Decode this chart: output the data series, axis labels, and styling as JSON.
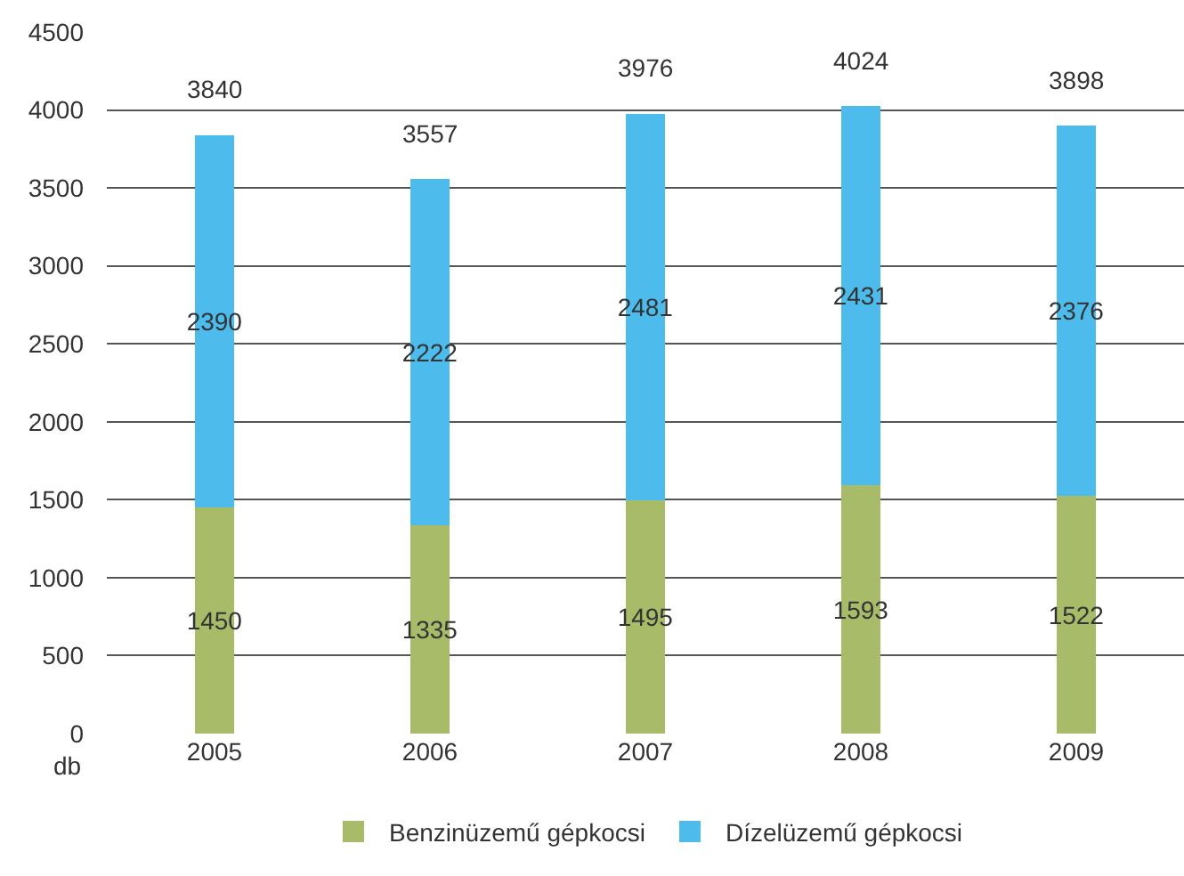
{
  "chart_data": {
    "type": "bar",
    "stacked": true,
    "ylabel": "db",
    "categories": [
      "2005",
      "2006",
      "2007",
      "2008",
      "2009"
    ],
    "series": [
      {
        "name": "Benzinüzemű gépkocsi",
        "color": "#a8bb69",
        "values": [
          1450,
          1335,
          1495,
          1593,
          1522
        ]
      },
      {
        "name": "Dízelüzemű gépkocsi",
        "color": "#4dbbeb",
        "values": [
          2390,
          2222,
          2481,
          2431,
          2376
        ]
      }
    ],
    "totals": [
      "3840",
      "3557",
      "3976",
      "4024",
      "3898"
    ],
    "data_labels": true,
    "ylim": [
      0,
      4500
    ],
    "yticks": [
      0,
      500,
      1000,
      1500,
      2000,
      2500,
      3000,
      3500,
      4000,
      4500
    ],
    "grid": "y",
    "legend": "bottom"
  }
}
